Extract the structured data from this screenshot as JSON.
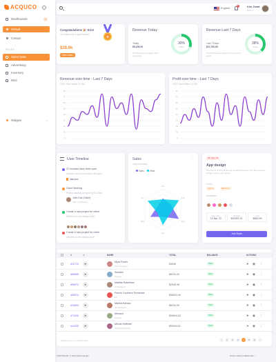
{
  "brand": {
    "name": "ACQUCO"
  },
  "sidebar": {
    "dashboards": "Dashboards",
    "badge": "2",
    "default": "Default",
    "custom": "Custom",
    "section": "PAGES",
    "items": [
      "Sales Data",
      "Advertising",
      "Inventory",
      "Misc"
    ],
    "widgets": "Widgets"
  },
  "topbar": {
    "language": "English",
    "notifications": "2",
    "user_name": "Kris Zwart",
    "user_role": "Admin"
  },
  "congrats": {
    "title": "Congratulations 🎉 Kris!",
    "subtitle": "You have won a gold medal",
    "amount": "$28.9k",
    "button": "View Sales"
  },
  "revenue_today": {
    "title": "Revenue Today",
    "label": "Today",
    "value": "$5,150,00",
    "note": "15.2% Revenue Higher than yesterday",
    "percent": "30%",
    "gauge_label": "Sales",
    "fill": 0.3
  },
  "revenue_week": {
    "title": "Revenue Last 7 Days",
    "label": "Last 7 Days",
    "value": "$11,700,00",
    "note": "10.2% Revenue Higher than previous week",
    "percent": "38%",
    "gauge_label": "Sales",
    "fill": 0.38
  },
  "revenue_time": {
    "title": "Revenue over time - Last 7 Days",
    "subtitle": "2022 Total Sales: 12.8K"
  },
  "profit_time": {
    "title": "Profit over time - Last 7 Days",
    "subtitle": "2022 Total Sales: 12.8K"
  },
  "chart_data": [
    {
      "type": "line",
      "title": "Revenue over time - Last 7 Days",
      "yticks": [
        "80",
        "70",
        "60",
        "50",
        "40",
        "30",
        "20",
        "10",
        "0"
      ],
      "x": [
        1,
        2,
        3,
        4,
        5,
        6,
        7,
        8,
        9,
        10,
        11,
        12,
        13,
        14,
        15,
        16,
        17,
        18,
        19,
        20
      ],
      "series": [
        {
          "values": [
            20,
            35,
            30,
            45,
            40,
            55,
            35,
            75,
            20,
            70,
            50,
            60,
            40,
            75,
            15,
            65,
            50,
            45,
            65,
            75
          ]
        }
      ],
      "ylim": [
        0,
        80
      ],
      "color": "#8b3fd6"
    },
    {
      "type": "line",
      "title": "Profit over time - Last 7 Days",
      "yticks": [
        "80",
        "70",
        "60",
        "50",
        "40",
        "30",
        "20",
        "10",
        "0"
      ],
      "x": [
        1,
        2,
        3,
        4,
        5,
        6,
        7,
        8,
        9,
        10,
        11,
        12,
        13,
        14,
        15,
        16,
        17,
        18,
        19,
        20
      ],
      "series": [
        {
          "values": [
            25,
            40,
            30,
            50,
            35,
            70,
            45,
            20,
            60,
            30,
            75,
            40,
            55,
            20,
            70,
            45,
            30,
            65,
            40,
            70
          ]
        }
      ],
      "ylim": [
        0,
        80
      ],
      "color": "#8b3fd6"
    }
  ],
  "timeline": {
    "title": "User Timeline",
    "items": [
      {
        "title": "12 Invoices have been paid",
        "sub": "Invoices have been paid to the apple",
        "file": "data.json",
        "color": "#7367f0"
      },
      {
        "title": "Client Meeting",
        "sub": "Project meeting with john @10:15am",
        "person": "John Doe (Client)",
        "role": "CEO of Infibeam",
        "color": "#f79239"
      },
      {
        "title": "Create a new project for client",
        "sub": "Add files to new design folder",
        "color": "#28c76f"
      },
      {
        "title": "Create a new project for client",
        "sub": "Add files to new design folder",
        "color": "#ea5455"
      }
    ]
  },
  "sales": {
    "title": "Sales",
    "subtitle": "Last 6 months",
    "legend": [
      "Sales",
      "Visits"
    ],
    "colors": [
      "#7367f0",
      "#00cfe8"
    ],
    "labels": [
      "Jan",
      "Feb",
      "Mar",
      "Apr",
      "May",
      "Jun"
    ]
  },
  "app": {
    "date": "03, Sep, 22",
    "title": "App design",
    "desc": "You can Find Only Post and Quotes Related to IOS like ipad app design, iphone app design",
    "team_label": "TEAM",
    "tags": [
      "Figma",
      "Behance"
    ],
    "members_label": "MEMBERS",
    "due_label": "Due Date",
    "due": "12 Apr, 22",
    "budget_label": "Budget",
    "budget": "$49251.91",
    "cost_label": "Cost",
    "cost": "$840.99",
    "button": "Join Team"
  },
  "table": {
    "headers": [
      "#",
      "",
      "NAME",
      "TOTAL",
      "BALANCE",
      "ACTIONS"
    ],
    "rows": [
      {
        "id": "#11716",
        "name": "Myra Foster",
        "sub": "Web Designer",
        "total": "$4098",
        "balance": "Paid",
        "avatar": "#c88"
      },
      {
        "id": "#56695",
        "name": "Sweden",
        "sub": "Country",
        "total": "$6234.39",
        "balance": "Paid",
        "avatar": "#8ac"
      },
      {
        "id": "#55972",
        "name": "Matilda Robertson",
        "sub": "UI Designer",
        "total": "$2536.98",
        "balance": "Paid",
        "avatar": "#a87"
      },
      {
        "id": "#53972",
        "name": "French Southern Territories",
        "sub": "FS",
        "total": "$98020.49",
        "balance": "Paid",
        "avatar": "#ea5455"
      },
      {
        "id": "#34694",
        "name": "Martha Barnes",
        "sub": "UX Designer",
        "total": "$6234.39",
        "balance": "Paid",
        "avatar": "#b76"
      },
      {
        "id": "#71926",
        "name": "Monaco",
        "sub": "Country",
        "total": "$50694.82",
        "balance": "Paid",
        "avatar": "#9a8"
      },
      {
        "id": "#44325",
        "name": "Minnie Hoffman",
        "sub": "Product Designer",
        "total": "$50694.82",
        "balance": "Paid",
        "avatar": "#a68"
      }
    ],
    "footer": "Showing 1 to 7 of 100 entries",
    "pages": [
      "1",
      "2",
      "3",
      "4",
      "5",
      "6"
    ]
  },
  "footer": {
    "left": "COPYRIGHT © 2022 Zwart Design",
    "right": "Hand-crafted & Made with"
  }
}
